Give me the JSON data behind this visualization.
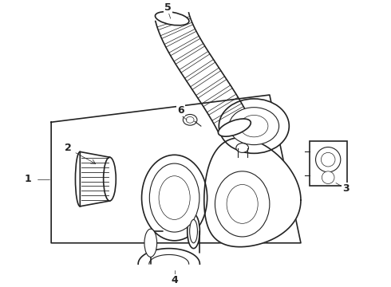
{
  "background_color": "#ffffff",
  "line_color": "#222222",
  "fig_width": 4.9,
  "fig_height": 3.6,
  "dpi": 100,
  "label_fontsize": 9
}
